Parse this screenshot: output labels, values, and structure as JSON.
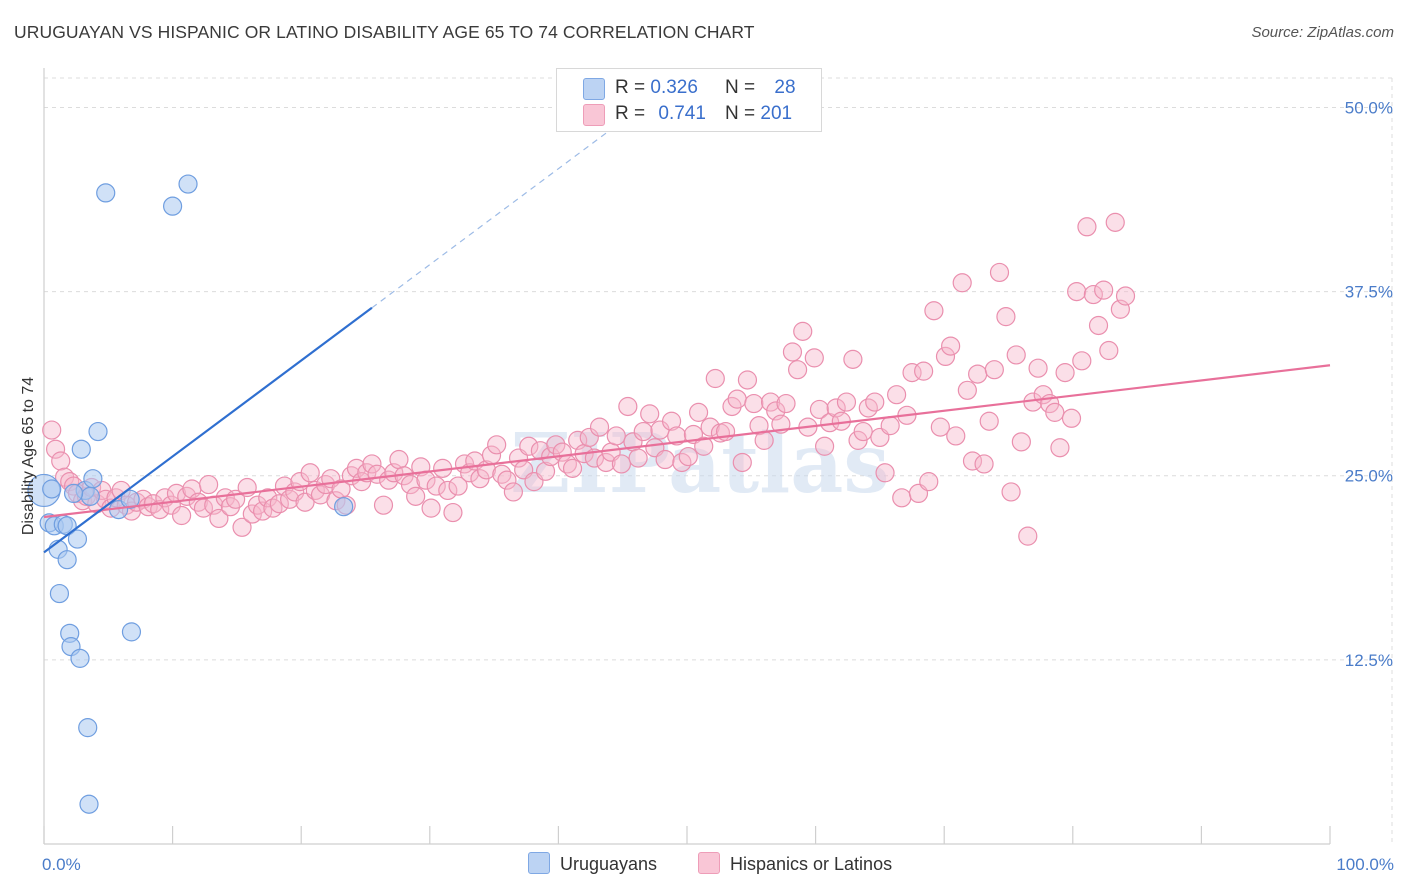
{
  "header": {
    "title": "URUGUAYAN VS HISPANIC OR LATINO DISABILITY AGE 65 TO 74 CORRELATION CHART",
    "source": "Source: ZipAtlas.com"
  },
  "watermark": "ZIPatlas",
  "colors": {
    "blue_fill": "#aac8f0",
    "blue_stroke": "#6f9ee0",
    "blue_line": "#2f6fd0",
    "pink_fill": "#f6b8cc",
    "pink_stroke": "#ea8fae",
    "pink_line": "#e8709a",
    "grid": "#dcdcdc",
    "tick_label": "#4a7cc9"
  },
  "legend_top": {
    "rows": [
      {
        "r_label": "R =",
        "r_value": "0.326",
        "n_label": "N =",
        "n_value": "28"
      },
      {
        "r_label": "R =",
        "r_value": "0.741",
        "n_label": "N =",
        "n_value": "201"
      }
    ]
  },
  "legend_bottom": {
    "items": [
      "Uruguayans",
      "Hispanics or Latinos"
    ]
  },
  "chart_data": {
    "type": "scatter",
    "title": "URUGUAYAN VS HISPANIC OR LATINO DISABILITY AGE 65 TO 74 CORRELATION CHART",
    "xlabel": "",
    "ylabel": "Disability Age 65 to 74",
    "xlim": [
      0,
      100
    ],
    "ylim": [
      0,
      52
    ],
    "x_tick_labels": [
      "0.0%",
      "100.0%"
    ],
    "y_ticks": [
      12.5,
      25.0,
      37.5,
      50.0
    ],
    "y_tick_labels": [
      "12.5%",
      "25.0%",
      "37.5%",
      "50.0%"
    ],
    "grid": true,
    "legend_position": "top-center",
    "series": [
      {
        "name": "Uruguayans",
        "R": 0.326,
        "N": 28,
        "trend": {
          "x0": 0,
          "y0": 19.8,
          "x1": 25.5,
          "y1": 36.4,
          "dashed_to_x": 45,
          "dashed_to_y": 49.1
        },
        "points": [
          [
            0.0,
            24.0
          ],
          [
            0.4,
            21.8
          ],
          [
            0.8,
            21.6
          ],
          [
            1.1,
            20.0
          ],
          [
            1.2,
            17.0
          ],
          [
            1.5,
            21.7
          ],
          [
            1.8,
            21.6
          ],
          [
            1.8,
            19.3
          ],
          [
            2.0,
            14.3
          ],
          [
            2.1,
            13.4
          ],
          [
            2.6,
            20.7
          ],
          [
            2.8,
            12.6
          ],
          [
            2.9,
            26.8
          ],
          [
            3.2,
            24.0
          ],
          [
            3.4,
            7.9
          ],
          [
            3.5,
            2.7
          ],
          [
            3.6,
            23.6
          ],
          [
            3.8,
            24.8
          ],
          [
            4.2,
            28.0
          ],
          [
            4.8,
            44.2
          ],
          [
            5.8,
            22.7
          ],
          [
            6.7,
            23.4
          ],
          [
            6.8,
            14.4
          ],
          [
            10.0,
            43.3
          ],
          [
            11.2,
            44.8
          ],
          [
            23.3,
            22.9
          ],
          [
            0.6,
            24.1
          ],
          [
            2.3,
            23.8
          ]
        ]
      },
      {
        "name": "Hispanics or Latinos",
        "R": 0.741,
        "N": 201,
        "trend": {
          "x0": 0,
          "y0": 22.2,
          "x1": 100,
          "y1": 32.5
        },
        "points": [
          [
            0.6,
            28.1
          ],
          [
            0.9,
            26.8
          ],
          [
            1.3,
            26.0
          ],
          [
            1.6,
            24.9
          ],
          [
            2.0,
            24.6
          ],
          [
            2.3,
            24.3
          ],
          [
            2.6,
            23.8
          ],
          [
            3.0,
            23.3
          ],
          [
            3.3,
            23.6
          ],
          [
            3.7,
            24.2
          ],
          [
            4.1,
            23.1
          ],
          [
            4.5,
            24.0
          ],
          [
            4.8,
            23.4
          ],
          [
            5.2,
            22.8
          ],
          [
            5.6,
            23.5
          ],
          [
            6.0,
            24.0
          ],
          [
            6.4,
            23.0
          ],
          [
            6.8,
            22.6
          ],
          [
            7.2,
            23.2
          ],
          [
            7.7,
            23.4
          ],
          [
            8.1,
            22.9
          ],
          [
            8.5,
            23.1
          ],
          [
            9.0,
            22.7
          ],
          [
            9.4,
            23.5
          ],
          [
            9.9,
            23.0
          ],
          [
            10.3,
            23.8
          ],
          [
            10.7,
            22.3
          ],
          [
            11.1,
            23.6
          ],
          [
            11.5,
            24.1
          ],
          [
            12.0,
            23.2
          ],
          [
            12.4,
            22.8
          ],
          [
            12.8,
            24.4
          ],
          [
            13.2,
            23.0
          ],
          [
            13.6,
            22.1
          ],
          [
            14.1,
            23.5
          ],
          [
            14.5,
            22.9
          ],
          [
            14.9,
            23.4
          ],
          [
            15.4,
            21.5
          ],
          [
            15.8,
            24.2
          ],
          [
            16.2,
            22.4
          ],
          [
            16.6,
            23.0
          ],
          [
            17.0,
            22.6
          ],
          [
            17.4,
            23.5
          ],
          [
            17.8,
            22.8
          ],
          [
            18.3,
            23.1
          ],
          [
            18.7,
            24.3
          ],
          [
            19.1,
            23.4
          ],
          [
            19.5,
            23.9
          ],
          [
            19.9,
            24.6
          ],
          [
            20.3,
            23.2
          ],
          [
            20.7,
            25.2
          ],
          [
            21.1,
            24.0
          ],
          [
            21.5,
            23.7
          ],
          [
            21.9,
            24.4
          ],
          [
            22.3,
            24.8
          ],
          [
            22.7,
            23.3
          ],
          [
            23.1,
            24.1
          ],
          [
            23.5,
            23.0
          ],
          [
            23.9,
            25.0
          ],
          [
            24.3,
            25.5
          ],
          [
            24.7,
            24.6
          ],
          [
            25.1,
            25.2
          ],
          [
            25.5,
            25.8
          ],
          [
            25.9,
            25.1
          ],
          [
            26.4,
            23.0
          ],
          [
            26.8,
            24.7
          ],
          [
            27.2,
            25.2
          ],
          [
            27.6,
            26.1
          ],
          [
            28.0,
            25.0
          ],
          [
            28.5,
            24.4
          ],
          [
            28.9,
            23.6
          ],
          [
            29.3,
            25.6
          ],
          [
            29.7,
            24.7
          ],
          [
            30.1,
            22.8
          ],
          [
            30.5,
            24.3
          ],
          [
            31.0,
            25.5
          ],
          [
            31.4,
            24.0
          ],
          [
            31.8,
            22.5
          ],
          [
            32.2,
            24.3
          ],
          [
            32.7,
            25.8
          ],
          [
            33.1,
            25.2
          ],
          [
            33.5,
            26.0
          ],
          [
            33.9,
            24.8
          ],
          [
            34.4,
            25.4
          ],
          [
            34.8,
            26.4
          ],
          [
            35.2,
            27.1
          ],
          [
            35.6,
            25.1
          ],
          [
            36.0,
            24.7
          ],
          [
            36.5,
            23.9
          ],
          [
            36.9,
            26.2
          ],
          [
            37.3,
            25.4
          ],
          [
            37.7,
            27.0
          ],
          [
            38.1,
            24.6
          ],
          [
            38.6,
            26.7
          ],
          [
            39.0,
            25.3
          ],
          [
            39.4,
            26.3
          ],
          [
            39.8,
            27.1
          ],
          [
            40.3,
            26.6
          ],
          [
            40.7,
            25.8
          ],
          [
            41.1,
            25.5
          ],
          [
            41.5,
            27.4
          ],
          [
            42.0,
            26.5
          ],
          [
            42.4,
            27.6
          ],
          [
            42.8,
            26.2
          ],
          [
            43.2,
            28.3
          ],
          [
            43.7,
            25.9
          ],
          [
            44.1,
            26.6
          ],
          [
            44.5,
            27.7
          ],
          [
            44.9,
            25.8
          ],
          [
            45.4,
            29.7
          ],
          [
            45.8,
            27.3
          ],
          [
            46.2,
            26.2
          ],
          [
            46.6,
            28.0
          ],
          [
            47.1,
            29.2
          ],
          [
            47.5,
            26.9
          ],
          [
            47.9,
            28.1
          ],
          [
            48.3,
            26.1
          ],
          [
            48.8,
            28.7
          ],
          [
            49.2,
            27.7
          ],
          [
            49.6,
            25.9
          ],
          [
            50.1,
            26.3
          ],
          [
            50.5,
            27.8
          ],
          [
            50.9,
            29.3
          ],
          [
            51.3,
            27.0
          ],
          [
            51.8,
            28.3
          ],
          [
            52.2,
            31.6
          ],
          [
            52.6,
            27.9
          ],
          [
            53.0,
            28.0
          ],
          [
            53.5,
            29.7
          ],
          [
            53.9,
            30.2
          ],
          [
            54.3,
            25.9
          ],
          [
            54.7,
            31.5
          ],
          [
            55.2,
            29.9
          ],
          [
            55.6,
            28.4
          ],
          [
            56.0,
            27.4
          ],
          [
            56.5,
            30.0
          ],
          [
            56.9,
            29.4
          ],
          [
            57.3,
            28.5
          ],
          [
            57.7,
            29.9
          ],
          [
            58.2,
            33.4
          ],
          [
            58.6,
            32.2
          ],
          [
            59.0,
            34.8
          ],
          [
            59.4,
            28.3
          ],
          [
            59.9,
            33.0
          ],
          [
            60.3,
            29.5
          ],
          [
            60.7,
            27.0
          ],
          [
            61.1,
            28.6
          ],
          [
            61.6,
            29.6
          ],
          [
            62.0,
            28.7
          ],
          [
            62.4,
            30.0
          ],
          [
            62.9,
            32.9
          ],
          [
            63.3,
            27.4
          ],
          [
            63.7,
            28.0
          ],
          [
            64.1,
            29.6
          ],
          [
            64.6,
            30.0
          ],
          [
            65.0,
            27.6
          ],
          [
            65.4,
            25.2
          ],
          [
            65.8,
            28.4
          ],
          [
            66.3,
            30.5
          ],
          [
            66.7,
            23.5
          ],
          [
            67.1,
            29.1
          ],
          [
            67.5,
            32.0
          ],
          [
            68.0,
            23.8
          ],
          [
            68.4,
            32.1
          ],
          [
            68.8,
            24.6
          ],
          [
            69.2,
            36.2
          ],
          [
            69.7,
            28.3
          ],
          [
            70.1,
            33.1
          ],
          [
            70.5,
            33.8
          ],
          [
            70.9,
            27.7
          ],
          [
            71.4,
            38.1
          ],
          [
            71.8,
            30.8
          ],
          [
            72.2,
            26.0
          ],
          [
            72.6,
            31.9
          ],
          [
            73.1,
            25.8
          ],
          [
            73.5,
            28.7
          ],
          [
            73.9,
            32.2
          ],
          [
            74.3,
            38.8
          ],
          [
            74.8,
            35.8
          ],
          [
            75.2,
            23.9
          ],
          [
            75.6,
            33.2
          ],
          [
            76.0,
            27.3
          ],
          [
            76.5,
            20.9
          ],
          [
            76.9,
            30.0
          ],
          [
            77.3,
            32.3
          ],
          [
            77.7,
            30.5
          ],
          [
            78.2,
            29.9
          ],
          [
            78.6,
            29.3
          ],
          [
            79.0,
            26.9
          ],
          [
            79.4,
            32.0
          ],
          [
            79.9,
            28.9
          ],
          [
            80.3,
            37.5
          ],
          [
            80.7,
            32.8
          ],
          [
            81.1,
            41.9
          ],
          [
            81.6,
            37.3
          ],
          [
            82.0,
            35.2
          ],
          [
            82.4,
            37.6
          ],
          [
            82.8,
            33.5
          ],
          [
            83.3,
            42.2
          ],
          [
            83.7,
            36.3
          ],
          [
            84.1,
            37.2
          ]
        ]
      }
    ]
  }
}
